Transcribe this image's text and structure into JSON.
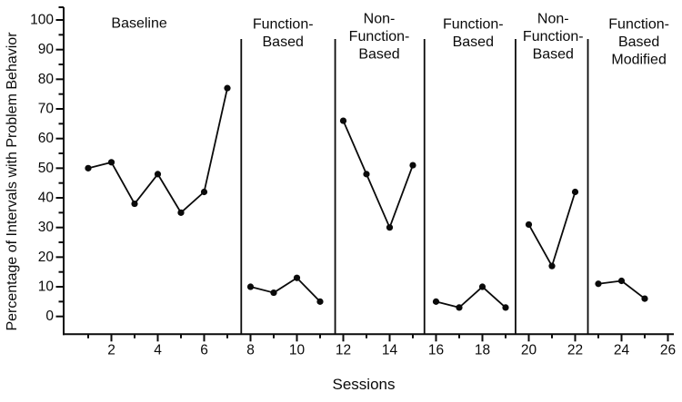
{
  "figure": {
    "background": "#ffffff",
    "ink_color": "#0a0a0a"
  },
  "chart_data": {
    "type": "line",
    "title": "",
    "xlabel": "Sessions",
    "ylabel": "Percentage of Intervals with Problem Behavior",
    "xlim": [
      0,
      27
    ],
    "ylim": [
      0,
      100
    ],
    "grid": false,
    "legend": "none",
    "marker": "filled-circle",
    "x_ticks_major": [
      2,
      4,
      6,
      8,
      10,
      12,
      14,
      16,
      18,
      20,
      22,
      24,
      26
    ],
    "x_ticks_minor": [
      1,
      3,
      5,
      7,
      9,
      11,
      13,
      15,
      17,
      19,
      21,
      23,
      25
    ],
    "y_ticks_major": [
      0,
      10,
      20,
      30,
      40,
      50,
      60,
      70,
      80,
      90,
      100
    ],
    "y_ticks_minor": [
      5,
      15,
      25,
      35,
      45,
      55,
      65,
      75,
      85,
      95,
      105
    ],
    "phase_dividers_x": [
      7.6,
      11.65,
      15.5,
      19.43,
      22.55
    ],
    "phases": [
      {
        "label": "Baseline",
        "label_lines": [
          "Baseline"
        ],
        "label_x": 3.2,
        "label_top": 26,
        "sessions": [
          1,
          2,
          3,
          4,
          5,
          6,
          7
        ],
        "values": [
          50,
          52,
          38,
          48,
          35,
          42,
          77
        ]
      },
      {
        "label": "Function-Based",
        "label_lines": [
          "Function-",
          "Based"
        ],
        "label_x": 9.4,
        "label_top": 27,
        "sessions": [
          8,
          9,
          10,
          11
        ],
        "values": [
          10,
          8,
          13,
          5
        ]
      },
      {
        "label": "Non-Function-Based",
        "label_lines": [
          "Non-",
          "Function-",
          "Based"
        ],
        "label_x": 13.55,
        "label_top": 21,
        "sessions": [
          12,
          13,
          14,
          15
        ],
        "values": [
          66,
          48,
          30,
          51
        ]
      },
      {
        "label": "Function-Based",
        "label_lines": [
          "Function-",
          "Based"
        ],
        "label_x": 17.6,
        "label_top": 27,
        "sessions": [
          16,
          17,
          18,
          19
        ],
        "values": [
          5,
          3,
          10,
          3
        ]
      },
      {
        "label": "Non-Function-Based",
        "label_lines": [
          "Non-",
          "Function-",
          "Based"
        ],
        "label_x": 21.05,
        "label_top": 21,
        "sessions": [
          20,
          21,
          22
        ],
        "values": [
          31,
          17,
          42
        ]
      },
      {
        "label": "Function-Based Modified",
        "label_lines": [
          "Function-",
          "Based",
          "Modified"
        ],
        "label_x": 24.75,
        "label_top": 27,
        "sessions": [
          23,
          24,
          25
        ],
        "values": [
          11,
          12,
          6
        ]
      }
    ]
  }
}
